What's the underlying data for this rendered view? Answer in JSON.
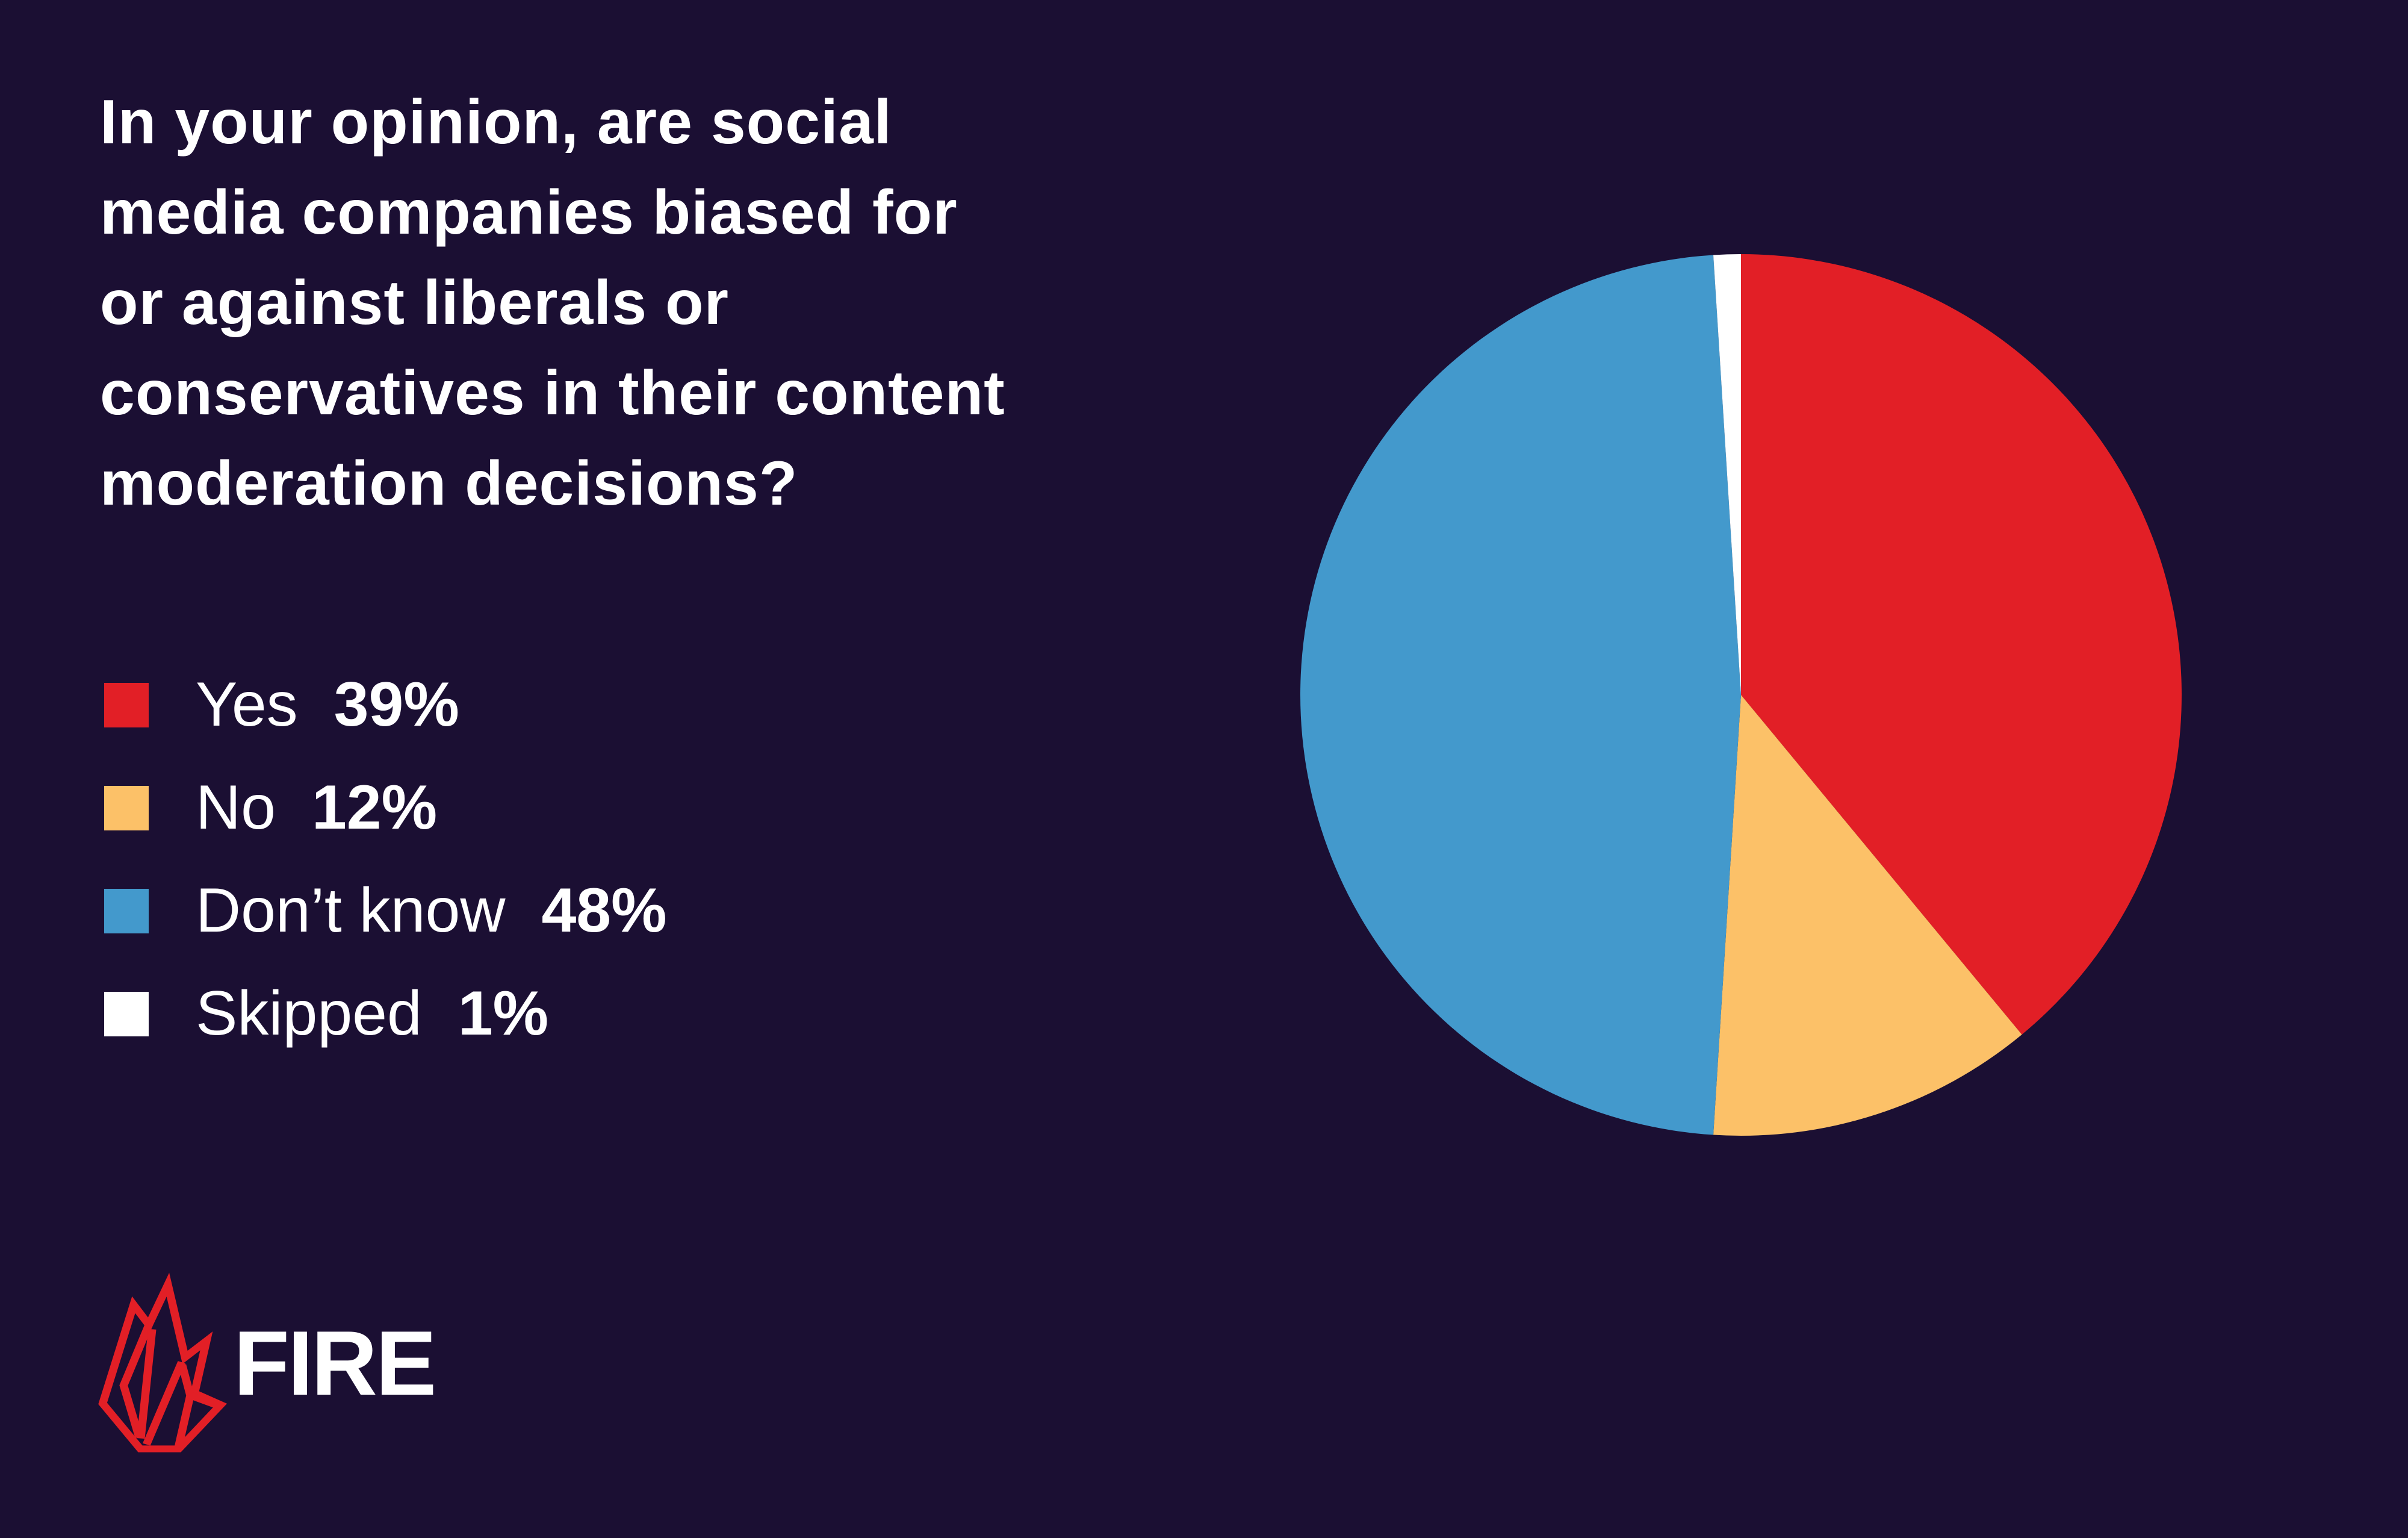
{
  "chart_data": {
    "type": "pie",
    "title_lines": [
      "In your opinion, are social",
      "media companies biased for",
      "or against liberals or",
      "conservatives in their content",
      "moderation decisions?"
    ],
    "categories": [
      "Yes",
      "No",
      "Don’t know",
      "Skipped"
    ],
    "values": [
      39,
      12,
      48,
      1
    ],
    "value_labels": [
      "39%",
      "12%",
      "48%",
      "1%"
    ],
    "colors": [
      "#E21F26",
      "#FCC168",
      "#4399CC",
      "#FFFFFF"
    ],
    "start": "top",
    "direction": "clockwise",
    "legend_placement": "left"
  },
  "brand": {
    "name": "FIRE",
    "accent": "#E21F26",
    "background": "#1B0F33"
  }
}
